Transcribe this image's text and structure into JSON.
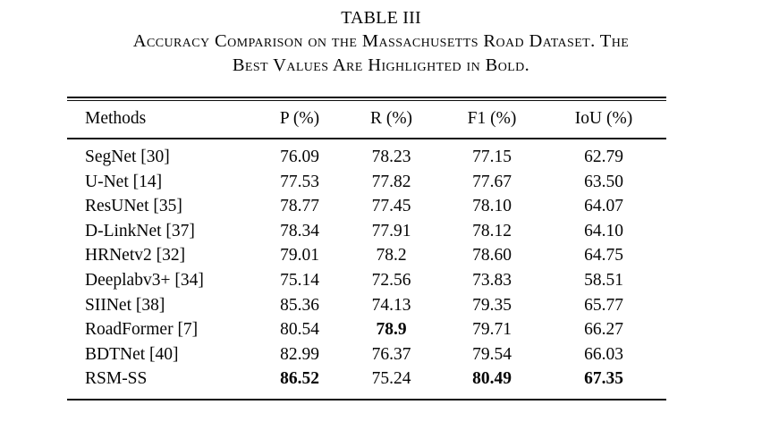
{
  "title": {
    "label": "TABLE III",
    "caption_line1": "Accuracy Comparison on the Massachusetts Road Dataset. The",
    "caption_line2": "Best Values Are Highlighted in Bold."
  },
  "table": {
    "columns": [
      "Methods",
      "P (%)",
      "R (%)",
      "F1 (%)",
      "IoU (%)"
    ],
    "rows": [
      {
        "method": "SegNet [30]",
        "values": [
          "76.09",
          "78.23",
          "77.15",
          "62.79"
        ],
        "bold": [
          false,
          false,
          false,
          false
        ]
      },
      {
        "method": "U-Net [14]",
        "values": [
          "77.53",
          "77.82",
          "77.67",
          "63.50"
        ],
        "bold": [
          false,
          false,
          false,
          false
        ]
      },
      {
        "method": "ResUNet [35]",
        "values": [
          "78.77",
          "77.45",
          "78.10",
          "64.07"
        ],
        "bold": [
          false,
          false,
          false,
          false
        ]
      },
      {
        "method": "D-LinkNet [37]",
        "values": [
          "78.34",
          "77.91",
          "78.12",
          "64.10"
        ],
        "bold": [
          false,
          false,
          false,
          false
        ]
      },
      {
        "method": "HRNetv2 [32]",
        "values": [
          "79.01",
          "78.2",
          "78.60",
          "64.75"
        ],
        "bold": [
          false,
          false,
          false,
          false
        ]
      },
      {
        "method": "Deeplabv3+ [34]",
        "values": [
          "75.14",
          "72.56",
          "73.83",
          "58.51"
        ],
        "bold": [
          false,
          false,
          false,
          false
        ]
      },
      {
        "method": "SIINet [38]",
        "values": [
          "85.36",
          "74.13",
          "79.35",
          "65.77"
        ],
        "bold": [
          false,
          false,
          false,
          false
        ]
      },
      {
        "method": "RoadFormer [7]",
        "values": [
          "80.54",
          "78.9",
          "79.71",
          "66.27"
        ],
        "bold": [
          false,
          true,
          false,
          false
        ]
      },
      {
        "method": "BDTNet [40]",
        "values": [
          "82.99",
          "76.37",
          "79.54",
          "66.03"
        ],
        "bold": [
          false,
          false,
          false,
          false
        ]
      },
      {
        "method": "RSM-SS",
        "values": [
          "86.52",
          "75.24",
          "80.49",
          "67.35"
        ],
        "bold": [
          true,
          false,
          true,
          true
        ]
      }
    ]
  },
  "chart_data": {
    "type": "table",
    "title": "TABLE III — Accuracy Comparison on the Massachusetts Road Dataset",
    "columns": [
      "Methods",
      "P (%)",
      "R (%)",
      "F1 (%)",
      "IoU (%)"
    ],
    "rows": [
      [
        "SegNet [30]",
        76.09,
        78.23,
        77.15,
        62.79
      ],
      [
        "U-Net [14]",
        77.53,
        77.82,
        77.67,
        63.5
      ],
      [
        "ResUNet [35]",
        78.77,
        77.45,
        78.1,
        64.07
      ],
      [
        "D-LinkNet [37]",
        78.34,
        77.91,
        78.12,
        64.1
      ],
      [
        "HRNetv2 [32]",
        79.01,
        78.2,
        78.6,
        64.75
      ],
      [
        "Deeplabv3+ [34]",
        75.14,
        72.56,
        73.83,
        58.51
      ],
      [
        "SIINet [38]",
        85.36,
        74.13,
        79.35,
        65.77
      ],
      [
        "RoadFormer [7]",
        80.54,
        78.9,
        79.71,
        66.27
      ],
      [
        "BDTNet [40]",
        82.99,
        76.37,
        79.54,
        66.03
      ],
      [
        "RSM-SS",
        86.52,
        75.24,
        80.49,
        67.35
      ]
    ]
  }
}
